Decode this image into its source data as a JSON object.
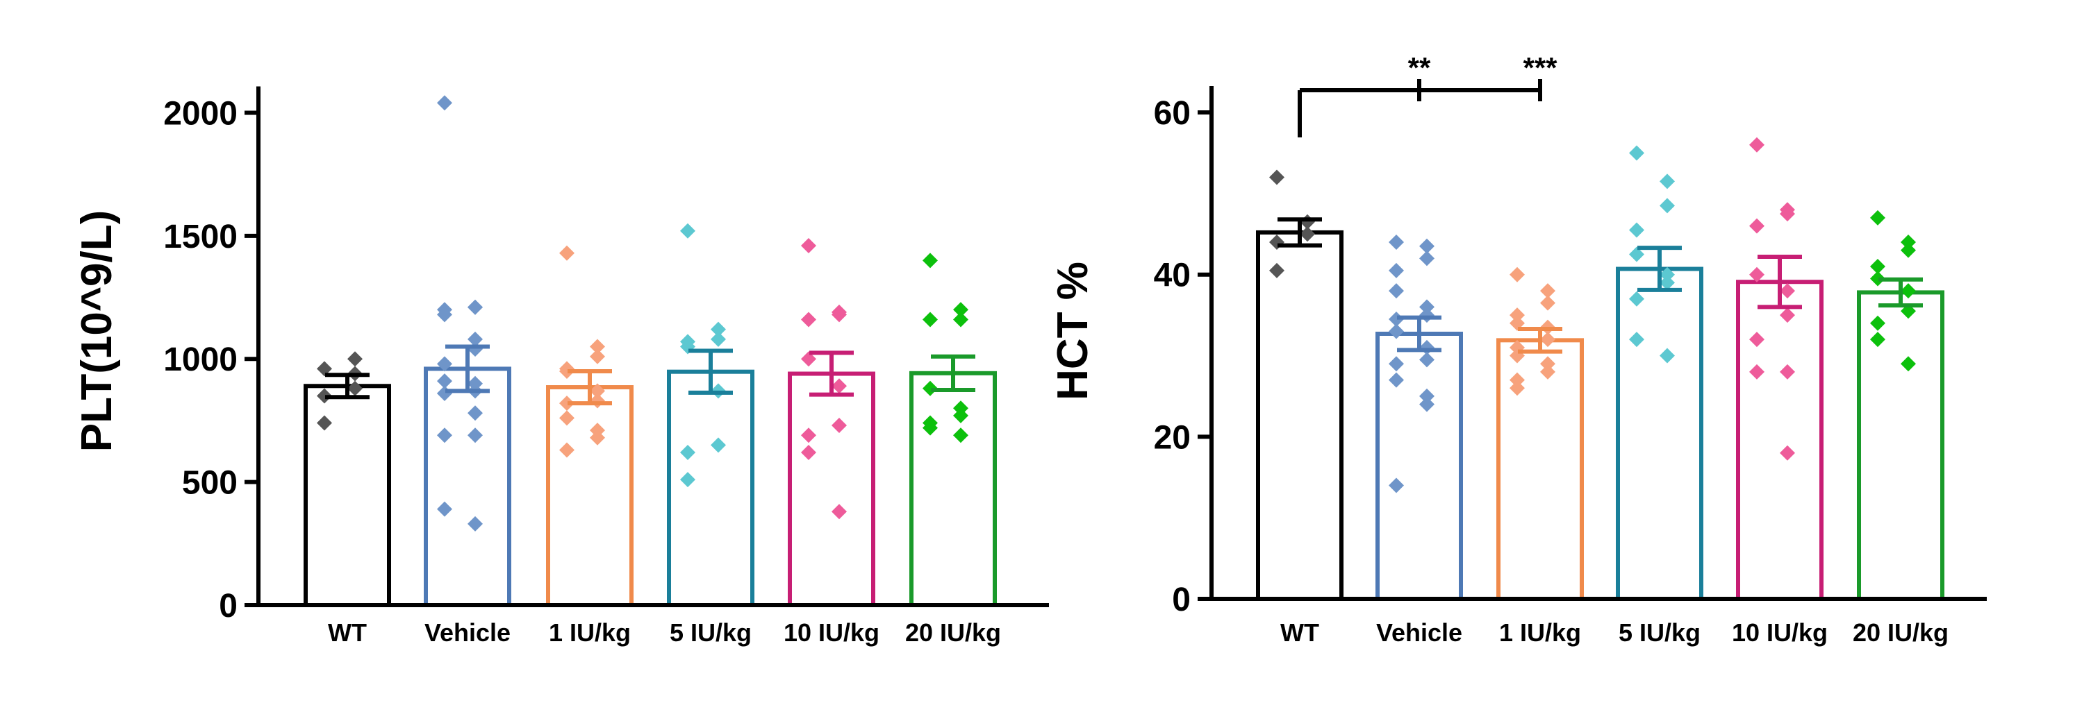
{
  "chart_data": [
    {
      "type": "bar",
      "ylabel": "PLT(10^9/L)",
      "ylim": [
        0,
        2100
      ],
      "yticks": [
        0,
        500,
        1000,
        1500,
        2000
      ],
      "ytick_labels": [
        "0",
        "500",
        "1000",
        "1500",
        "2000"
      ],
      "categories": [
        "WT",
        "Vehicle",
        "1 IU/kg",
        "5 IU/kg",
        "10 IU/kg",
        "20 IU/kg"
      ],
      "colors": [
        "#000000",
        "#4E79B5",
        "#F08A4B",
        "#1A7F9A",
        "#C71E74",
        "#1A9A2A"
      ],
      "point_colors": [
        "#555555",
        "#6F95C9",
        "#F7A27C",
        "#5CC8D1",
        "#EE5B9A",
        "#0CC00C"
      ],
      "values": [
        890,
        960,
        885,
        948,
        940,
        942
      ],
      "sem": [
        45,
        90,
        65,
        85,
        85,
        68
      ],
      "points": [
        [
          960,
          1000,
          880,
          850,
          740,
          940
        ],
        [
          2040,
          1210,
          1210,
          1200,
          1180,
          1080,
          1040,
          980,
          910,
          900,
          870,
          860,
          860,
          780,
          690,
          690,
          390,
          330
        ],
        [
          1430,
          1050,
          1010,
          960,
          950,
          870,
          830,
          820,
          760,
          710,
          680,
          630
        ],
        [
          1520,
          1120,
          1080,
          1070,
          1050,
          870,
          650,
          620,
          510
        ],
        [
          1460,
          1180,
          1190,
          1160,
          1000,
          890,
          730,
          690,
          620,
          380
        ],
        [
          1400,
          1200,
          1160,
          1160,
          880,
          800,
          770,
          740,
          720,
          690
        ]
      ]
    },
    {
      "type": "bar",
      "ylabel": "HCT %",
      "ylim": [
        0,
        63
      ],
      "yticks": [
        0,
        20,
        40,
        60
      ],
      "ytick_labels": [
        "0",
        "20",
        "40",
        "60"
      ],
      "categories": [
        "WT",
        "Vehicle",
        "1 IU/kg",
        "5 IU/kg",
        "10 IU/kg",
        "20 IU/kg"
      ],
      "colors": [
        "#000000",
        "#4E79B5",
        "#F08A4B",
        "#1A7F9A",
        "#C71E74",
        "#1A9A2A"
      ],
      "point_colors": [
        "#555555",
        "#6F95C9",
        "#F7A27C",
        "#5CC8D1",
        "#EE5B9A",
        "#0CC00C"
      ],
      "values": [
        45.2,
        32.7,
        31.9,
        40.7,
        39.1,
        37.8
      ],
      "sem": [
        1.6,
        2.0,
        1.4,
        2.6,
        3.1,
        1.6
      ],
      "points": [
        [
          52,
          46.5,
          45,
          44,
          40.5
        ],
        [
          44,
          43.5,
          42,
          40.5,
          38,
          36,
          35,
          34.5,
          33,
          31,
          29.5,
          29,
          27,
          25,
          24,
          14
        ],
        [
          40,
          38,
          36.5,
          35,
          34,
          33.5,
          32,
          31,
          30,
          29,
          28,
          27,
          26
        ],
        [
          55,
          51.5,
          48.5,
          45.5,
          42.5,
          40,
          39,
          37,
          32,
          30
        ],
        [
          56,
          48,
          47.5,
          46,
          40,
          38,
          35,
          32,
          28,
          28,
          18
        ],
        [
          47,
          44,
          43,
          41,
          39.5,
          38,
          35.5,
          34,
          32,
          29
        ]
      ],
      "significance": [
        {
          "from": 0,
          "to": 1,
          "label": "**"
        },
        {
          "from": 0,
          "to": 2,
          "label": "***"
        }
      ]
    }
  ]
}
